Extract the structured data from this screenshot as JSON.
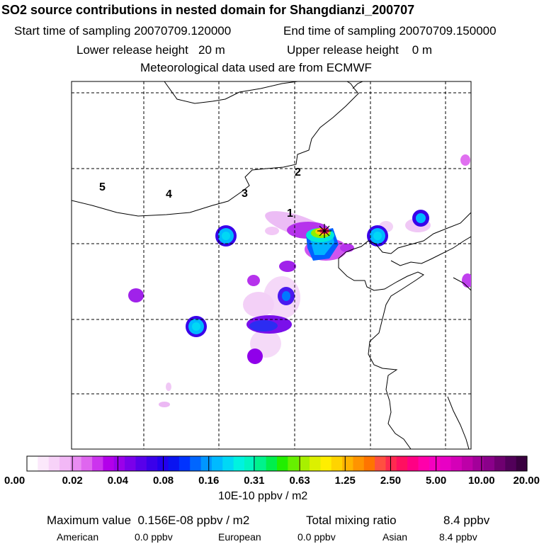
{
  "header": {
    "title": "SO2 source contributions in nested domain for Shangdianzi_200707",
    "start_label": "Start time of sampling 20070709.120000",
    "end_label": "End time of sampling 20070709.150000",
    "lower_label": "Lower release height   20 m",
    "upper_label": "Upper release height    0 m",
    "met_label": "Meteorological data used are from ECMWF"
  },
  "chart_data": {
    "type": "heatmap",
    "title": "SO2 source contributions in nested domain for Shangdianzi_200707",
    "region_labels": [
      "1",
      "2",
      "3",
      "4",
      "5"
    ],
    "colorbar": {
      "tick_labels": [
        "0.00",
        "0.02",
        "0.04",
        "0.08",
        "0.16",
        "0.31",
        "0.63",
        "1.25",
        "2.50",
        "5.00",
        "10.00",
        "20.00"
      ],
      "colors": [
        "#ffffff",
        "#fbe8fb",
        "#f7d2f8",
        "#f2b8f6",
        "#e98cf2",
        "#df66ef",
        "#cc33ee",
        "#b300ea",
        "#9a00ea",
        "#7a00ea",
        "#5800ea",
        "#3a00ea",
        "#2200ee",
        "#0a14f0",
        "#0033ff",
        "#0066ff",
        "#0096ff",
        "#00baff",
        "#00d8f5",
        "#00f2e0",
        "#00f5c0",
        "#00f28c",
        "#00ee4c",
        "#22ee00",
        "#66f000",
        "#a8f000",
        "#dcf000",
        "#ffee00",
        "#ffd400",
        "#ffb400",
        "#ff9400",
        "#ff7400",
        "#ff5040",
        "#ff2a50",
        "#ff1060",
        "#ff0084",
        "#ff00aa",
        "#f500c0",
        "#e800c4",
        "#d400b8",
        "#bd00a8",
        "#a3009a",
        "#8a008a",
        "#6e0070",
        "#52005a",
        "#3a0040"
      ],
      "units": "10E-10 ppbv / m2"
    },
    "max_value_label": "Maximum value  0.156E-08 ppbv / m2",
    "total_mixing_ratio_label": "Total mixing ratio",
    "total_mixing_ratio_value": "8.4 ppbv",
    "contributions": [
      {
        "name": "American",
        "value": "0.0 ppbv"
      },
      {
        "name": "European",
        "value": "0.0 ppbv"
      },
      {
        "name": "Asian",
        "value": "8.4 ppbv"
      }
    ]
  }
}
